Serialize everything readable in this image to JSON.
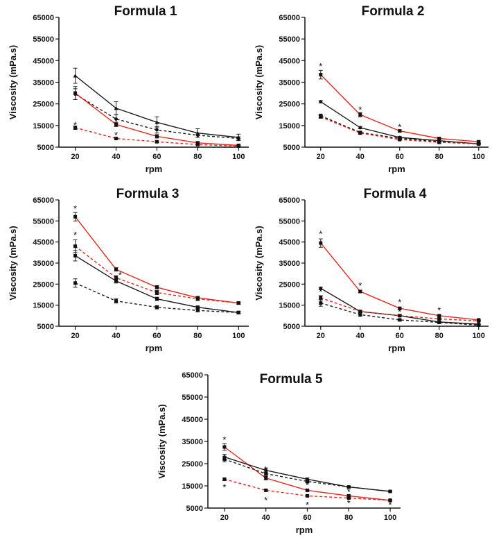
{
  "chart_data": [
    {
      "type": "line",
      "title": "Formula 1",
      "xlabel": "rpm",
      "ylabel": "Viscosity (mPa.s)",
      "x": [
        20,
        40,
        60,
        80,
        100
      ],
      "xlim": [
        12,
        105
      ],
      "ylim": [
        5000,
        65000
      ],
      "yticks": [
        5000,
        15000,
        25000,
        35000,
        45000,
        55000,
        65000
      ],
      "xticks": [
        20,
        40,
        60,
        80,
        100
      ],
      "grid": false,
      "series": [
        {
          "color": "#1a1a1a",
          "dashed": false,
          "marker": "triangle",
          "values": [
            38000,
            23000,
            16500,
            11500,
            9500
          ],
          "errors": [
            3500,
            3000,
            2500,
            2000,
            1500
          ]
        },
        {
          "color": "#1a1a1a",
          "dashed": true,
          "marker": "circle",
          "values": [
            29500,
            18000,
            13000,
            10500,
            9000
          ],
          "errors": [
            2500,
            2000,
            1500,
            1000,
            800
          ]
        },
        {
          "color": "#e8241c",
          "dashed": false,
          "marker": "square",
          "values": [
            30000,
            15500,
            10000,
            7000,
            5800
          ],
          "errors": [
            3000,
            1000,
            800,
            500,
            400
          ]
        },
        {
          "color": "#e8241c",
          "dashed": true,
          "marker": "square",
          "values": [
            14000,
            9000,
            7500,
            6200,
            5500
          ],
          "errors": [
            800,
            500,
            400,
            300,
            300
          ]
        }
      ],
      "annotations": [
        {
          "text": "*",
          "x": 20,
          "y": 15500
        },
        {
          "text": "*",
          "x": 40,
          "y": 10800
        }
      ]
    },
    {
      "type": "line",
      "title": "Formula 2",
      "xlabel": "rpm",
      "ylabel": "Viscosity (mPa.s)",
      "x": [
        20,
        40,
        60,
        80,
        100
      ],
      "xlim": [
        12,
        105
      ],
      "ylim": [
        5000,
        65000
      ],
      "yticks": [
        5000,
        15000,
        25000,
        35000,
        45000,
        55000,
        65000
      ],
      "xticks": [
        20,
        40,
        60,
        80,
        100
      ],
      "grid": false,
      "series": [
        {
          "color": "#e8241c",
          "dashed": false,
          "marker": "square",
          "values": [
            38500,
            20000,
            12500,
            9000,
            7500
          ],
          "errors": [
            2000,
            1000,
            500,
            500,
            400
          ]
        },
        {
          "color": "#1a1a1a",
          "dashed": false,
          "marker": "circle",
          "values": [
            26000,
            14000,
            9500,
            8000,
            6500
          ],
          "errors": [
            500,
            500,
            400,
            300,
            300
          ]
        },
        {
          "color": "#1a1a1a",
          "dashed": true,
          "marker": "square",
          "values": [
            19500,
            11800,
            9000,
            7500,
            6500
          ],
          "errors": [
            800,
            500,
            400,
            300,
            300
          ]
        },
        {
          "color": "#e8241c",
          "dashed": true,
          "marker": "square",
          "values": [
            19000,
            11500,
            8500,
            7200,
            6500
          ],
          "errors": [
            600,
            400,
            300,
            300,
            300
          ]
        }
      ],
      "annotations": [
        {
          "text": "*",
          "x": 20,
          "y": 42500
        },
        {
          "text": "*",
          "x": 40,
          "y": 22500
        },
        {
          "text": "*",
          "x": 60,
          "y": 14500
        }
      ]
    },
    {
      "type": "line",
      "title": "Formula 3",
      "xlabel": "rpm",
      "ylabel": "Viscosity (mPa.s)",
      "x": [
        20,
        40,
        60,
        80,
        100
      ],
      "xlim": [
        12,
        105
      ],
      "ylim": [
        5000,
        65000
      ],
      "yticks": [
        5000,
        15000,
        25000,
        35000,
        45000,
        55000,
        65000
      ],
      "xticks": [
        20,
        40,
        60,
        80,
        100
      ],
      "grid": false,
      "series": [
        {
          "color": "#e8241c",
          "dashed": false,
          "marker": "square",
          "values": [
            57000,
            32000,
            23500,
            18500,
            16000
          ],
          "errors": [
            2000,
            800,
            800,
            600,
            500
          ]
        },
        {
          "color": "#e8241c",
          "dashed": true,
          "marker": "square",
          "values": [
            43000,
            28000,
            21000,
            18000,
            16000
          ],
          "errors": [
            3000,
            1000,
            1000,
            800,
            500
          ]
        },
        {
          "color": "#1a1a1a",
          "dashed": false,
          "marker": "square",
          "values": [
            38500,
            26500,
            18000,
            14000,
            11500
          ],
          "errors": [
            2500,
            1000,
            800,
            600,
            500
          ]
        },
        {
          "color": "#1a1a1a",
          "dashed": true,
          "marker": "square",
          "values": [
            25500,
            17000,
            14000,
            12500,
            11500
          ],
          "errors": [
            2000,
            1000,
            800,
            600,
            500
          ]
        }
      ],
      "annotations": [
        {
          "text": "*",
          "x": 20,
          "y": 61000
        },
        {
          "text": "*",
          "x": 20,
          "y": 48500
        },
        {
          "text": "*",
          "x": 42,
          "y": 29500
        }
      ]
    },
    {
      "type": "line",
      "title": "Formula 4",
      "xlabel": "rpm",
      "ylabel": "Viscosity (mPa.s)",
      "x": [
        20,
        40,
        60,
        80,
        100
      ],
      "xlim": [
        12,
        105
      ],
      "ylim": [
        5000,
        65000
      ],
      "yticks": [
        5000,
        15000,
        25000,
        35000,
        45000,
        55000,
        65000
      ],
      "xticks": [
        20,
        40,
        60,
        80,
        100
      ],
      "grid": false,
      "series": [
        {
          "color": "#e8241c",
          "dashed": false,
          "marker": "square",
          "values": [
            44500,
            21500,
            13500,
            10000,
            8000
          ],
          "errors": [
            2000,
            600,
            500,
            400,
            300
          ]
        },
        {
          "color": "#1a1a1a",
          "dashed": false,
          "marker": "circle",
          "values": [
            23000,
            12000,
            10000,
            7000,
            6000
          ],
          "errors": [
            500,
            400,
            300,
            300,
            300
          ]
        },
        {
          "color": "#e8241c",
          "dashed": true,
          "marker": "square",
          "values": [
            18500,
            12000,
            10000,
            8500,
            7500
          ],
          "errors": [
            1000,
            600,
            500,
            400,
            300
          ]
        },
        {
          "color": "#1a1a1a",
          "dashed": true,
          "marker": "square",
          "values": [
            16000,
            10500,
            8000,
            6800,
            5500
          ],
          "errors": [
            1500,
            800,
            500,
            400,
            300
          ]
        }
      ],
      "annotations": [
        {
          "text": "*",
          "x": 20,
          "y": 49000
        },
        {
          "text": "*",
          "x": 20,
          "y": 21500
        },
        {
          "text": "*",
          "x": 40,
          "y": 24500
        },
        {
          "text": "*",
          "x": 60,
          "y": 16500
        },
        {
          "text": "*",
          "x": 60,
          "y": 12000
        },
        {
          "text": "*",
          "x": 80,
          "y": 12800
        }
      ]
    },
    {
      "type": "line",
      "title": "Formula 5",
      "xlabel": "rpm",
      "ylabel": "Viscosity (mPa.s)",
      "x": [
        20,
        40,
        60,
        80,
        100
      ],
      "xlim": [
        12,
        105
      ],
      "ylim": [
        5000,
        65000
      ],
      "yticks": [
        5000,
        15000,
        25000,
        35000,
        45000,
        55000,
        65000
      ],
      "xticks": [
        20,
        40,
        60,
        80,
        100
      ],
      "grid": false,
      "series": [
        {
          "color": "#e8241c",
          "dashed": false,
          "marker": "square",
          "values": [
            32500,
            18500,
            13000,
            10500,
            8500
          ],
          "errors": [
            1500,
            800,
            500,
            400,
            300
          ]
        },
        {
          "color": "#1a1a1a",
          "dashed": false,
          "marker": "circle",
          "values": [
            28000,
            22000,
            18000,
            14500,
            12500
          ],
          "errors": [
            1200,
            800,
            600,
            400,
            300
          ]
        },
        {
          "color": "#1a1a1a",
          "dashed": true,
          "marker": "square",
          "values": [
            27000,
            20500,
            17000,
            14500,
            12500
          ],
          "errors": [
            1200,
            800,
            600,
            400,
            300
          ]
        },
        {
          "color": "#e8241c",
          "dashed": true,
          "marker": "square",
          "values": [
            18000,
            13000,
            10500,
            9500,
            8500
          ],
          "errors": [
            600,
            400,
            400,
            300,
            300
          ]
        }
      ],
      "annotations": [
        {
          "text": "*",
          "x": 20,
          "y": 36000
        },
        {
          "text": "*",
          "x": 20,
          "y": 14500
        },
        {
          "text": "*",
          "x": 40,
          "y": 22500
        },
        {
          "text": "*",
          "x": 40,
          "y": 8800
        },
        {
          "text": "*",
          "x": 60,
          "y": 15500
        },
        {
          "text": "*",
          "x": 60,
          "y": 6500
        },
        {
          "text": "*",
          "x": 80,
          "y": 12500
        },
        {
          "text": "*",
          "x": 80,
          "y": 7300
        },
        {
          "text": "*",
          "x": 100,
          "y": 6600
        }
      ]
    }
  ]
}
